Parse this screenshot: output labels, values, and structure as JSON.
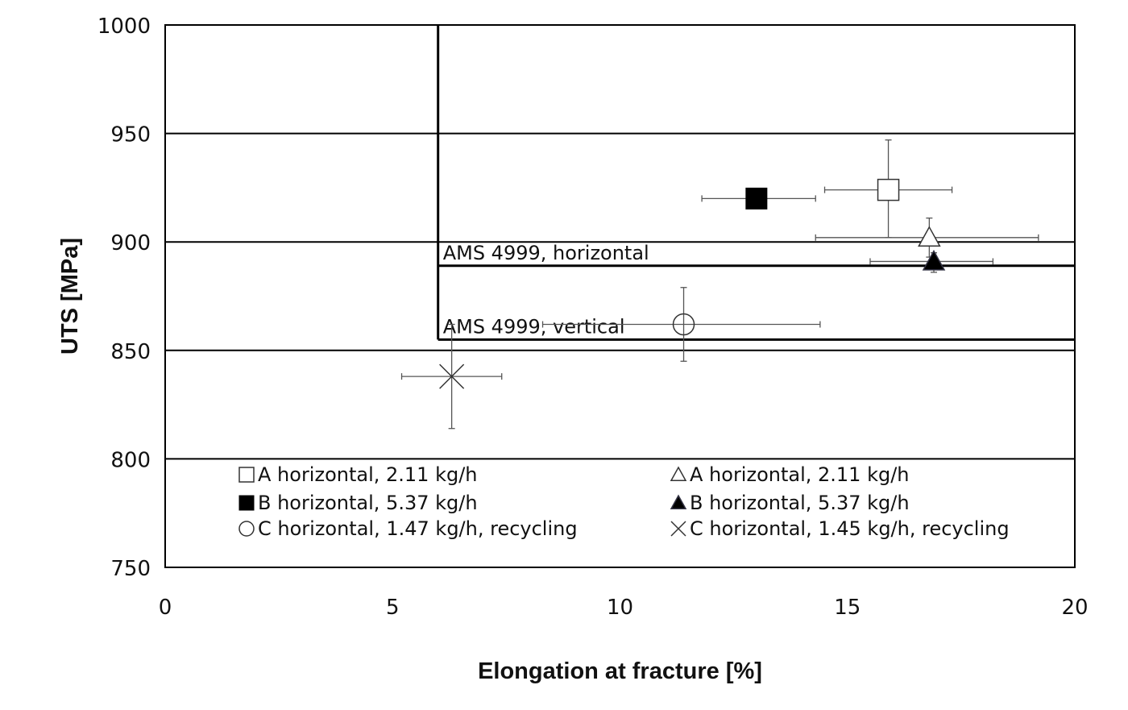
{
  "chart_data": {
    "type": "scatter",
    "title": "",
    "xlabel": "Elongation at fracture [%]",
    "ylabel": "UTS [MPa]",
    "xlim": [
      0,
      20
    ],
    "ylim": [
      750,
      1000
    ],
    "xticks": [
      0,
      5,
      10,
      15,
      20
    ],
    "yticks": [
      750,
      800,
      850,
      900,
      950,
      1000
    ],
    "grid": "horizontal",
    "legend_position": "bottom",
    "series": [
      {
        "name": "A horizontal, 2.11 kg/h",
        "marker": "square-open",
        "x": 15.9,
        "y": 924,
        "xerr": [
          14.5,
          17.3
        ],
        "yerr": [
          902,
          947
        ]
      },
      {
        "name": "B horizontal, 5.37 kg/h",
        "marker": "square-filled",
        "x": 13.0,
        "y": 920,
        "xerr": [
          11.8,
          14.3
        ],
        "yerr": [
          920,
          920
        ]
      },
      {
        "name": "C horizontal, 1.47 kg/h, recycling",
        "marker": "circle-open",
        "x": 11.4,
        "y": 862,
        "xerr": [
          8.3,
          14.4
        ],
        "yerr": [
          845,
          879
        ]
      },
      {
        "name": "A horizontal, 2.11 kg/h",
        "marker": "triangle-open",
        "x": 16.8,
        "y": 902,
        "xerr": [
          14.3,
          19.2
        ],
        "yerr": [
          893,
          911
        ]
      },
      {
        "name": "B horizontal, 5.37 kg/h",
        "marker": "triangle-filled",
        "x": 16.9,
        "y": 891,
        "xerr": [
          15.5,
          18.2
        ],
        "yerr": [
          886,
          895
        ]
      },
      {
        "name": "C horizontal, 1.45 kg/h, recycling",
        "marker": "x",
        "x": 6.3,
        "y": 838,
        "xerr": [
          5.2,
          7.4
        ],
        "yerr": [
          814,
          862
        ]
      }
    ],
    "reference_lines": [
      {
        "label": "AMS 4999, horizontal",
        "x_min": 6,
        "y_min": 889
      },
      {
        "label": "AMS 4999, vertical",
        "x_min": 6,
        "y_min": 855
      }
    ],
    "colors": {
      "axis": "#000000",
      "marker": "#000000",
      "errorbar": "#555555"
    }
  }
}
